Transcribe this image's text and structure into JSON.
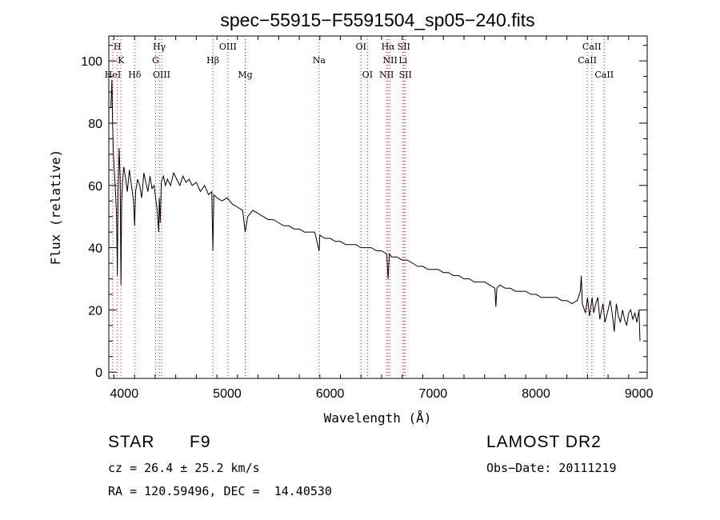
{
  "chart_data": {
    "type": "line",
    "title": "spec−55915−F5591504_sp05−240.fits",
    "xlabel": "Wavelength (Å)",
    "ylabel": "Flux (relative)",
    "xlim": [
      3850,
      9080
    ],
    "ylim": [
      -2,
      108
    ],
    "x_ticks": [
      4000,
      5000,
      6000,
      7000,
      8000,
      9000
    ],
    "y_ticks": [
      0,
      20,
      40,
      60,
      80,
      100
    ],
    "grid": false,
    "line_color": "#000000",
    "marker_line_color": "#ff0000",
    "series": [
      {
        "x": [
          3870,
          3880,
          3888,
          3895,
          3905,
          3915,
          3925,
          3933,
          3940,
          3950,
          3960,
          3968,
          3975,
          3985,
          3995,
          4010,
          4030,
          4050,
          4070,
          4090,
          4101,
          4110,
          4130,
          4150,
          4170,
          4190,
          4210,
          4230,
          4250,
          4270,
          4290,
          4305,
          4320,
          4335,
          4340,
          4350,
          4360,
          4380,
          4400,
          4420,
          4450,
          4480,
          4510,
          4540,
          4570,
          4600,
          4630,
          4660,
          4700,
          4740,
          4780,
          4820,
          4850,
          4861,
          4870,
          4900,
          4950,
          5000,
          5050,
          5100,
          5150,
          5175,
          5200,
          5250,
          5300,
          5350,
          5400,
          5450,
          5500,
          5550,
          5600,
          5650,
          5700,
          5750,
          5800,
          5850,
          5893,
          5900,
          5950,
          6000,
          6050,
          6100,
          6150,
          6200,
          6250,
          6300,
          6350,
          6400,
          6450,
          6500,
          6550,
          6563,
          6575,
          6600,
          6650,
          6700,
          6750,
          6800,
          6850,
          6900,
          6950,
          7000,
          7050,
          7100,
          7150,
          7200,
          7250,
          7300,
          7350,
          7400,
          7450,
          7500,
          7550,
          7600,
          7610,
          7620,
          7650,
          7700,
          7750,
          7800,
          7850,
          7900,
          7950,
          8000,
          8050,
          8100,
          8150,
          8200,
          8250,
          8300,
          8350,
          8400,
          8430,
          8440,
          8450,
          8480,
          8500,
          8520,
          8545,
          8560,
          8580,
          8600,
          8620,
          8650,
          8670,
          8700,
          8720,
          8740,
          8760,
          8780,
          8800,
          8820,
          8840,
          8860,
          8880,
          8900,
          8920,
          8940,
          8960,
          8980,
          9000,
          9010
        ],
        "y": [
          85,
          94,
          78,
          70,
          64,
          58,
          50,
          31,
          58,
          72,
          62,
          28,
          55,
          62,
          66,
          63,
          58,
          65,
          60,
          55,
          47,
          58,
          62,
          60,
          56,
          64,
          61,
          58,
          63,
          59,
          60,
          56,
          52,
          45,
          56,
          48,
          61,
          63,
          60,
          62,
          60,
          64,
          62,
          60,
          63,
          61,
          62,
          60,
          61,
          58,
          60,
          57,
          58,
          39,
          57,
          56,
          55,
          56,
          54,
          53,
          52,
          45,
          50,
          52,
          51,
          50,
          49,
          49,
          48,
          47,
          47,
          46,
          46,
          45,
          45,
          45,
          39,
          44,
          43,
          43,
          42,
          42,
          41,
          41,
          41,
          40,
          40,
          40,
          39,
          39,
          38,
          30,
          38,
          37,
          37,
          36,
          36,
          35,
          34,
          34,
          33,
          33,
          33,
          32,
          32,
          31,
          31,
          30,
          30,
          29,
          29,
          29,
          28,
          27,
          21,
          27,
          28,
          27,
          27,
          26,
          26,
          26,
          25,
          25,
          24,
          24,
          24,
          24,
          23,
          23,
          22,
          23,
          26,
          31,
          22,
          19,
          24,
          18,
          24,
          19,
          22,
          24,
          17,
          22,
          16,
          20,
          23,
          19,
          13,
          22,
          18,
          16,
          20,
          17,
          15,
          19,
          20,
          17,
          19,
          16,
          20,
          10
        ]
      }
    ],
    "lines": [
      {
        "label": "H",
        "x": 3933,
        "row": 0
      },
      {
        "label": "K",
        "x": 3968,
        "row": 1
      },
      {
        "label": "HeI",
        "x": 3889,
        "row": 2
      },
      {
        "label": "Hδ",
        "x": 4101,
        "row": 2
      },
      {
        "label": "Hγ",
        "x": 4340,
        "row": 0
      },
      {
        "label": "G",
        "x": 4305,
        "row": 1
      },
      {
        "label": "OIII",
        "x": 4363,
        "row": 2
      },
      {
        "label": "OIII",
        "x": 5007,
        "row": 0
      },
      {
        "label": "Hβ",
        "x": 4861,
        "row": 1
      },
      {
        "label": "Mg",
        "x": 5175,
        "row": 2
      },
      {
        "label": "Na",
        "x": 5893,
        "row": 1
      },
      {
        "label": "OI",
        "x": 6300,
        "row": 0
      },
      {
        "label": "OI",
        "x": 6363,
        "row": 2
      },
      {
        "label": "Hα",
        "x": 6563,
        "row": 0
      },
      {
        "label": "SII",
        "x": 6716,
        "row": 0
      },
      {
        "label": "NII",
        "x": 6583,
        "row": 1
      },
      {
        "label": "Li",
        "x": 6708,
        "row": 1
      },
      {
        "label": "NII",
        "x": 6548,
        "row": 2
      },
      {
        "label": "SII",
        "x": 6731,
        "row": 2
      },
      {
        "label": "CaII",
        "x": 8542,
        "row": 0
      },
      {
        "label": "CaII",
        "x": 8498,
        "row": 1
      },
      {
        "label": "CaII",
        "x": 8662,
        "row": 2
      }
    ]
  },
  "info": {
    "object_class": "STAR",
    "subclass": "F9",
    "survey": "LAMOST DR2",
    "cz": "cz = 26.4 ± 25.2 km/s",
    "obs_date": "Obs−Date: 20111219",
    "radec": "RA = 120.59496, DEC =  14.40530"
  }
}
